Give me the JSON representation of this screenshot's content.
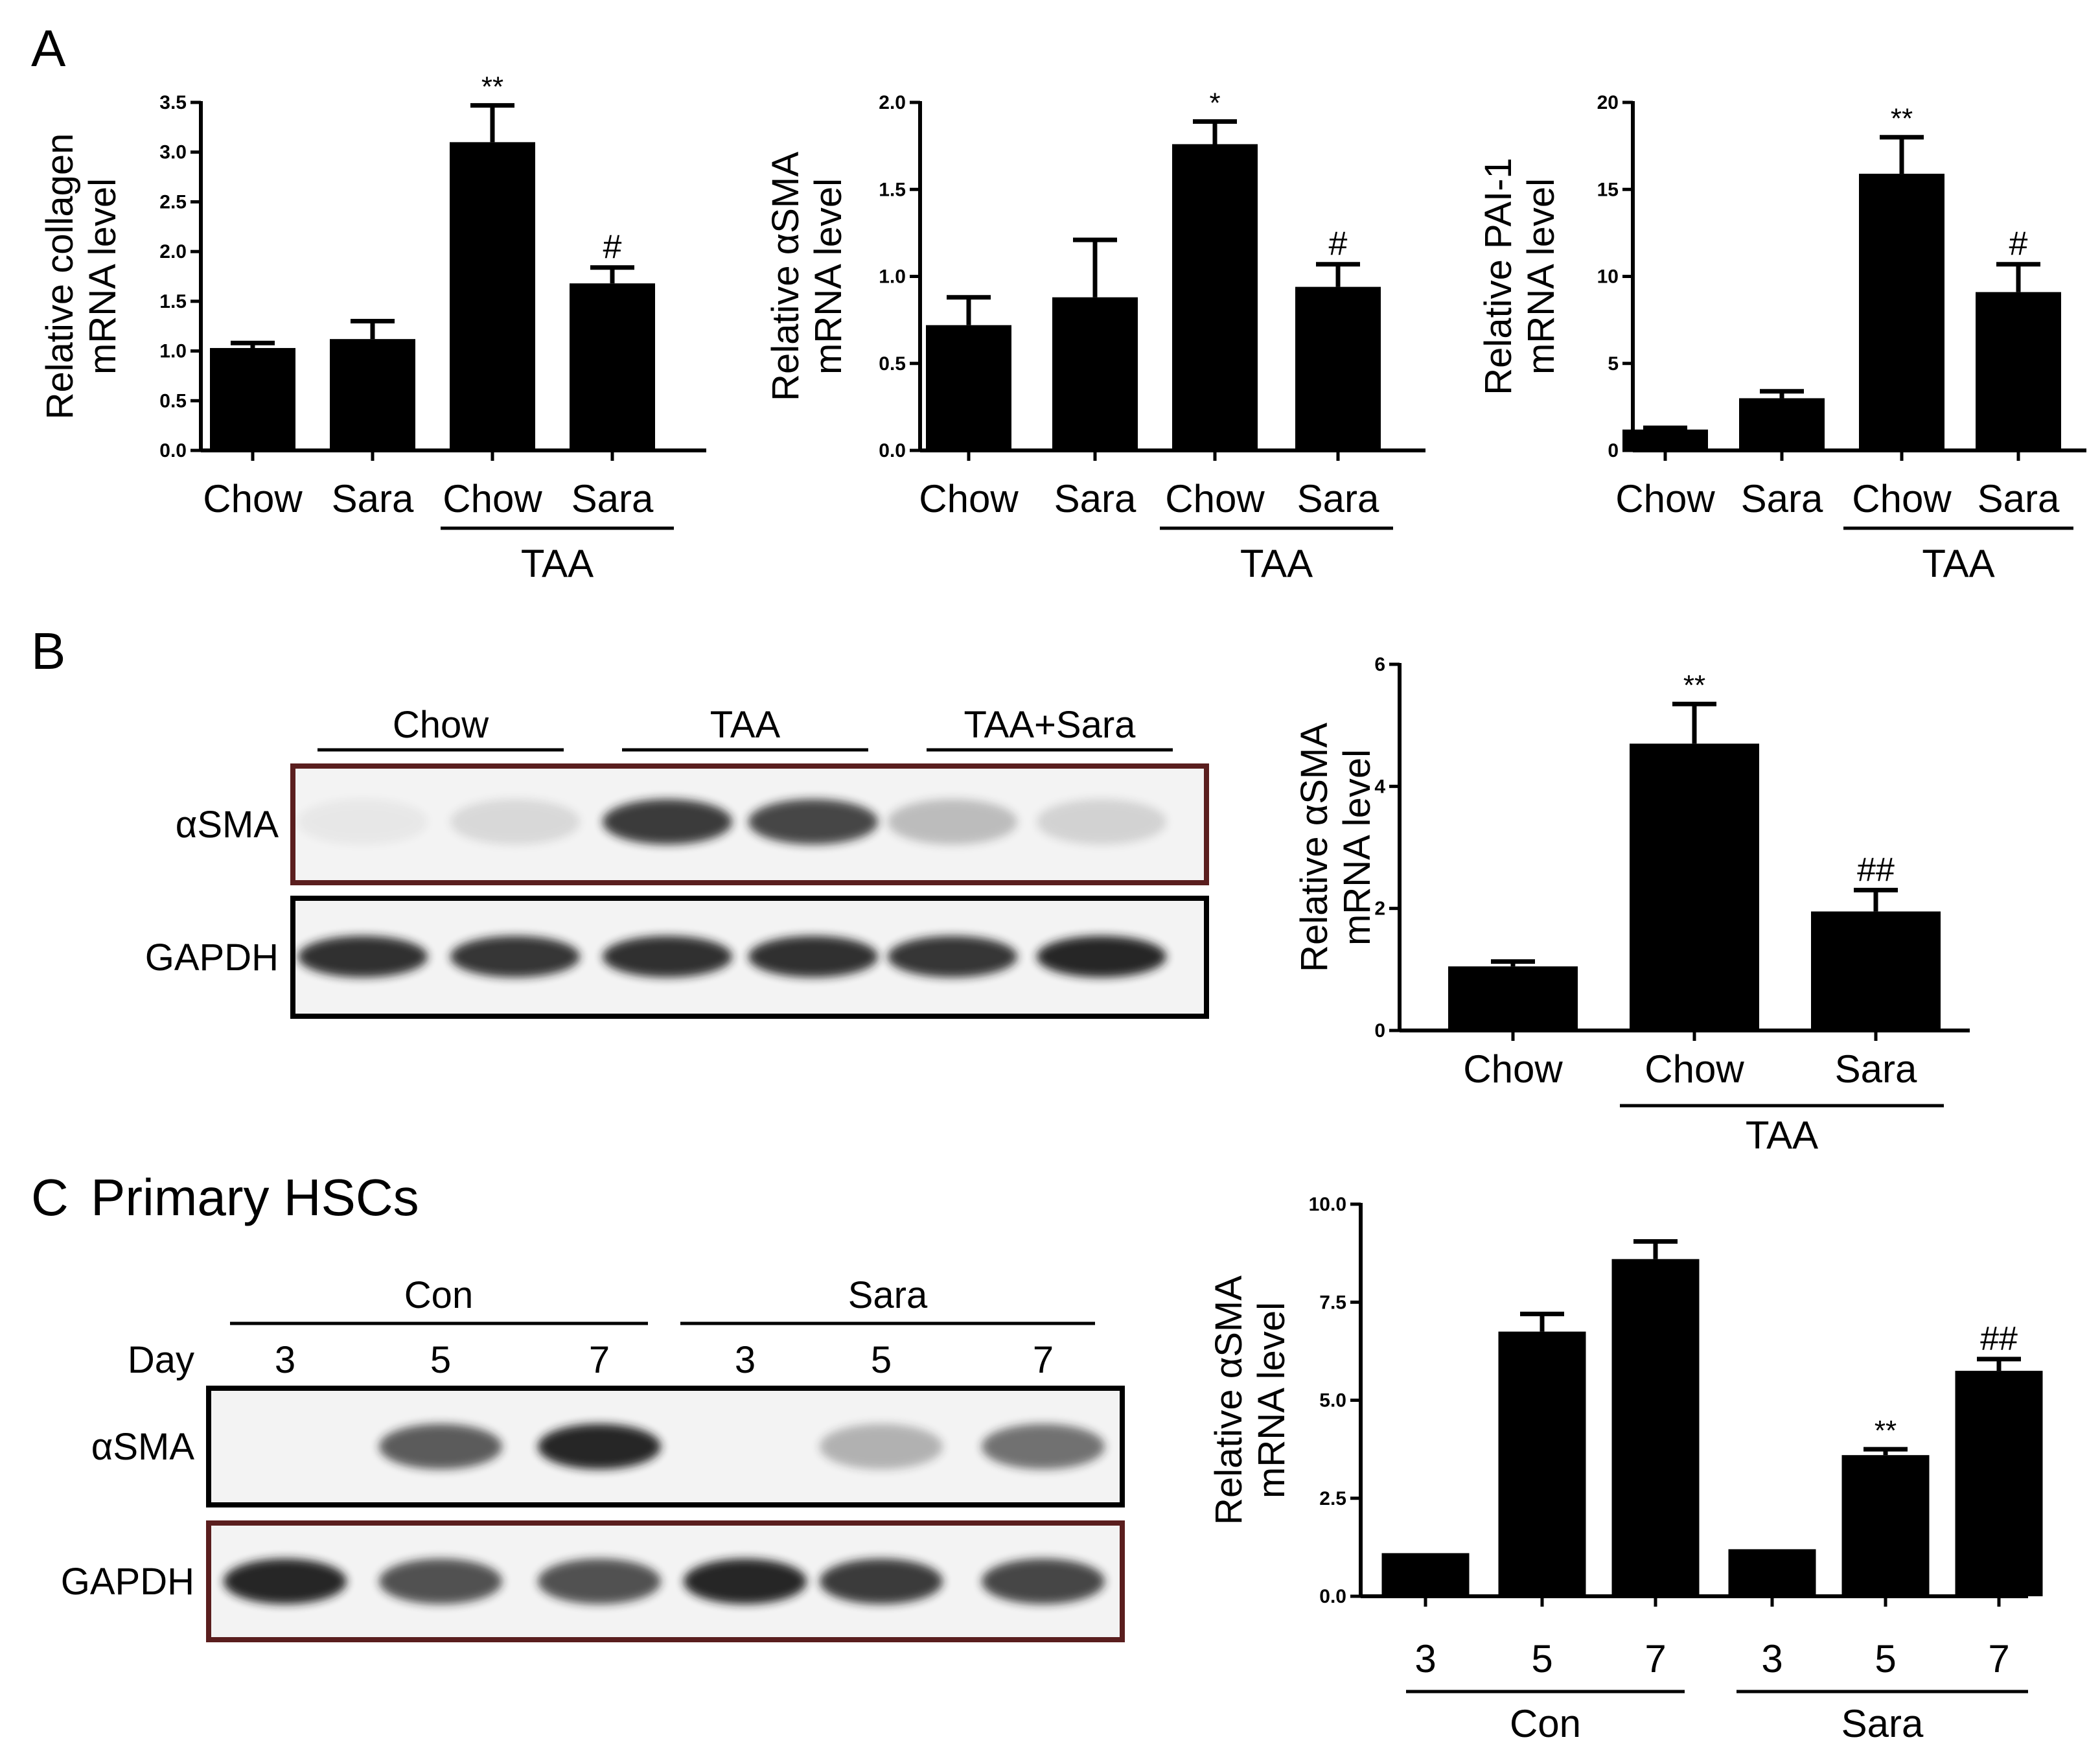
{
  "panel_labels": {
    "a": "A",
    "b": "B",
    "c": "C",
    "c_title": "Primary HSCs"
  },
  "colors": {
    "bar": "#000000",
    "blot_border_dark": "#000000",
    "blot_border_red": "#5a1e1e",
    "band": "#1a1a1a"
  },
  "chart_data": [
    {
      "id": "a1",
      "type": "bar",
      "categories": [
        "Chow",
        "Sara",
        "Chow",
        "Sara"
      ],
      "values": [
        1.03,
        1.12,
        3.1,
        1.68
      ],
      "errors": [
        0.05,
        0.18,
        0.37,
        0.16
      ],
      "marks": [
        "",
        "",
        "**",
        "#"
      ],
      "ylabel": [
        "Relative collagen",
        "mRNA level"
      ],
      "ylim": [
        0,
        3.5
      ],
      "yticks": [
        "0.0",
        "0.5",
        "1.0",
        "1.5",
        "2.0",
        "2.5",
        "3.0",
        "3.5"
      ],
      "group_label": "TAA"
    },
    {
      "id": "a2",
      "type": "bar",
      "categories": [
        "Chow",
        "Sara",
        "Chow",
        "Sara"
      ],
      "values": [
        0.72,
        0.88,
        1.76,
        0.94
      ],
      "errors": [
        0.16,
        0.33,
        0.13,
        0.13
      ],
      "marks": [
        "",
        "",
        "*",
        "#"
      ],
      "ylabel": [
        "Relative αSMA",
        "mRNA level"
      ],
      "ylim": [
        0,
        2.0
      ],
      "yticks": [
        "0.0",
        "0.5",
        "1.0",
        "1.5",
        "2.0"
      ],
      "group_label": "TAA"
    },
    {
      "id": "a3",
      "type": "bar",
      "categories": [
        "Chow",
        "Sara",
        "Chow",
        "Sara"
      ],
      "values": [
        1.2,
        3.0,
        15.9,
        9.1
      ],
      "errors": [
        0.1,
        0.4,
        2.1,
        1.6
      ],
      "marks": [
        "",
        "",
        "**",
        "#"
      ],
      "ylabel": [
        "Relative PAI-1",
        "mRNA level"
      ],
      "ylim": [
        0,
        20
      ],
      "yticks": [
        "0",
        "5",
        "10",
        "15",
        "20"
      ],
      "group_label": "TAA"
    },
    {
      "id": "b",
      "type": "bar",
      "categories": [
        "Chow",
        "Chow",
        "Sara"
      ],
      "values": [
        1.05,
        4.7,
        1.95
      ],
      "errors": [
        0.08,
        0.65,
        0.35
      ],
      "marks": [
        "",
        "**",
        "##"
      ],
      "ylabel": [
        "Relative αSMA",
        "mRNA level"
      ],
      "ylim": [
        0,
        6
      ],
      "yticks": [
        "0",
        "2",
        "4",
        "6"
      ],
      "group_label": "TAA"
    },
    {
      "id": "c",
      "type": "bar",
      "categories": [
        "3",
        "5",
        "7",
        "3",
        "5",
        "7"
      ],
      "values": [
        1.1,
        6.75,
        8.6,
        1.2,
        3.6,
        5.75
      ],
      "errors": [
        0.0,
        0.45,
        0.45,
        0.0,
        0.15,
        0.3
      ],
      "marks": [
        "",
        "",
        "",
        "",
        "**",
        "##"
      ],
      "ylabel": [
        "Relative αSMA",
        "mRNA level"
      ],
      "ylim": [
        0,
        10
      ],
      "yticks": [
        "0.0",
        "2.5",
        "5.0",
        "7.5",
        "10.0"
      ],
      "group_labels": [
        "Con",
        "Sara"
      ]
    }
  ],
  "blot_b": {
    "groups": [
      "Chow",
      "TAA",
      "TAA+Sara"
    ],
    "rows": [
      "αSMA",
      "GAPDH"
    ],
    "band_intensity": {
      "αSMA": [
        0.05,
        0.12,
        0.85,
        0.8,
        0.25,
        0.15
      ],
      "GAPDH": [
        0.9,
        0.88,
        0.9,
        0.9,
        0.88,
        0.95
      ]
    }
  },
  "blot_c": {
    "groups": [
      "Con",
      "Sara"
    ],
    "day_label": "Day",
    "days": [
      "3",
      "5",
      "7",
      "3",
      "5",
      "7"
    ],
    "rows": [
      "αSMA",
      "GAPDH"
    ],
    "band_intensity": {
      "αSMA": [
        0.0,
        0.7,
        0.95,
        0.0,
        0.3,
        0.6
      ],
      "GAPDH": [
        0.95,
        0.75,
        0.75,
        0.95,
        0.85,
        0.8
      ]
    }
  }
}
